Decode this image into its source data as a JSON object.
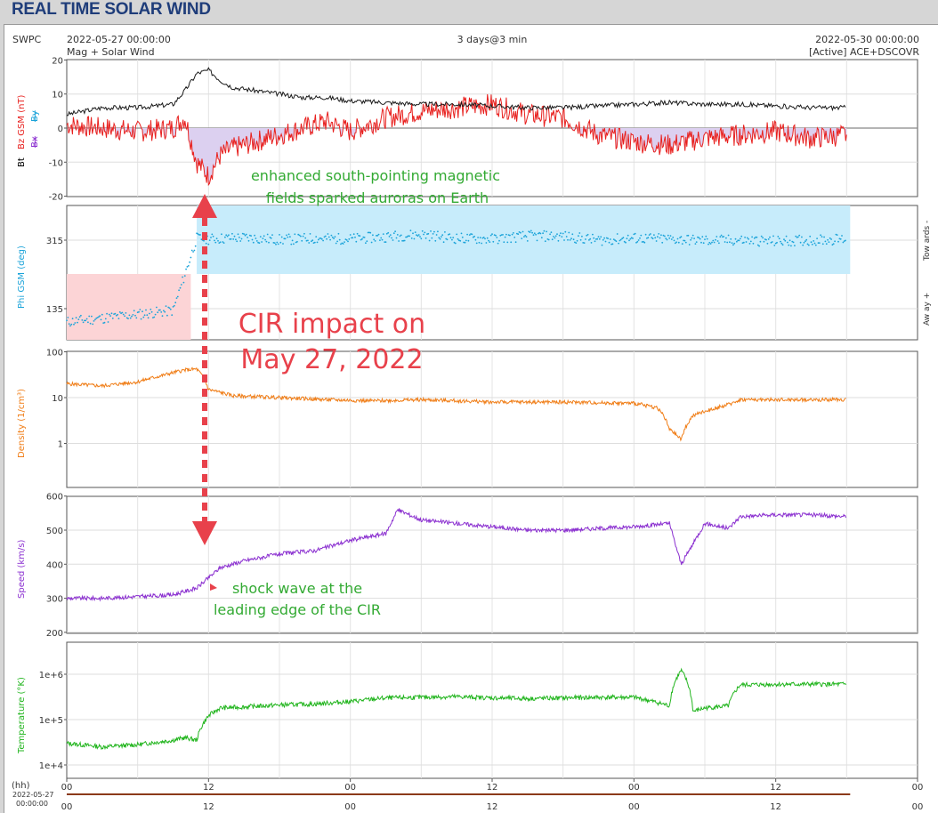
{
  "header": {
    "title": "REAL TIME SOLAR WIND",
    "org": "SWPC",
    "start_time": "2022-05-27 00:00:00",
    "subtitle": "Mag + Solar Wind",
    "span": "3 days@3 min",
    "end_time": "2022-05-30 00:00:00",
    "source": "[Active] ACE+DSCOVR"
  },
  "panels": {
    "mag": {
      "ylabel_bt": "Bt",
      "ylabel_bz": "Bz GSM (nT)",
      "ylabel_bx": "Bx",
      "ylabel_by": "By",
      "ticks": [
        "20",
        "10",
        "0",
        "-10",
        "-20"
      ]
    },
    "phi": {
      "ylabel": "Phi GSM (deg)",
      "ticks": [
        "315",
        "135"
      ],
      "right_top": "Tow ards -",
      "right_bottom": "Aw ay +"
    },
    "density": {
      "ylabel": "Density (1/cm³)",
      "ticks": [
        "100",
        "10",
        "1"
      ]
    },
    "speed": {
      "ylabel": "Speed (km/s)",
      "ticks": [
        "600",
        "500",
        "400",
        "300",
        "200"
      ]
    },
    "temp": {
      "ylabel": "Temperature (°K)",
      "ticks": [
        "1e+6",
        "1e+5",
        "1e+4"
      ]
    }
  },
  "xaxis": {
    "unit": "(hh)",
    "date": "2022-05-27",
    "time": "00:00:00",
    "ticks": [
      "00",
      "12",
      "00",
      "12",
      "00",
      "12",
      "00"
    ]
  },
  "annotations": {
    "bz_note": [
      "enhanced south-pointing magnetic",
      "fields sparked auroras on Earth"
    ],
    "cir_note": [
      "CIR impact on",
      "May 27, 2022"
    ],
    "shock_note": [
      "shock wave at the",
      "leading edge of the CIR"
    ]
  },
  "colors": {
    "bt": "#1a1a1a",
    "bz": "#e8201e",
    "phi": "#1aa3d9",
    "phi_towards": "#c7ecfb",
    "phi_away": "#fcd4d6",
    "density": "#f07d16",
    "speed": "#8b30d0",
    "temp": "#22b51e",
    "annot_green": "#33aa33",
    "annot_red": "#e8414b",
    "bz_fill": "#dcd0f0"
  },
  "chart_data": [
    {
      "type": "line",
      "title": "Mag",
      "ylabel": "Bt / Bz GSM (nT)",
      "ylim": [
        -20,
        20
      ],
      "x_unit": "hours since 2022-05-27 00:00",
      "series": [
        {
          "name": "Bt",
          "x": [
            0,
            3,
            6,
            9,
            10,
            11,
            12,
            13,
            14,
            16,
            18,
            20,
            22,
            24,
            27,
            30,
            33,
            36,
            39,
            42,
            45,
            48,
            51,
            54,
            57,
            60,
            63,
            66
          ],
          "values": [
            4,
            6,
            6,
            7,
            11,
            16,
            17,
            14,
            12,
            11,
            10,
            9,
            9,
            8,
            7.5,
            7,
            7,
            6.5,
            6,
            6,
            6.5,
            7,
            7.5,
            7,
            7,
            6.5,
            6,
            6
          ]
        },
        {
          "name": "Bz GSM",
          "x": [
            0,
            3,
            6,
            9,
            10,
            11,
            12,
            13,
            14,
            16,
            18,
            20,
            22,
            24,
            27,
            30,
            33,
            36,
            39,
            42,
            45,
            48,
            51,
            54,
            57,
            60,
            63,
            66
          ],
          "values": [
            1,
            0,
            -1,
            0,
            3,
            -10,
            -14,
            -8,
            -6,
            -4,
            -2,
            0,
            2,
            -1,
            3,
            5,
            6,
            7,
            4,
            3,
            -2,
            -4,
            -5,
            -3,
            -2,
            -1,
            -3,
            -2
          ]
        }
      ]
    },
    {
      "type": "scatter",
      "title": "Phi GSM",
      "ylabel": "Phi GSM (deg)",
      "ylim": [
        45,
        360
      ],
      "x_unit": "hours since 2022-05-27 00:00",
      "series": [
        {
          "name": "Phi",
          "x": [
            0,
            3,
            6,
            9,
            11,
            12,
            15,
            18,
            21,
            24,
            27,
            30,
            33,
            36,
            39,
            42,
            45,
            48,
            51,
            54,
            57,
            60,
            63,
            66
          ],
          "values": [
            100,
            110,
            120,
            130,
            320,
            318,
            322,
            316,
            320,
            318,
            324,
            330,
            320,
            318,
            326,
            325,
            315,
            320,
            318,
            314,
            315,
            312,
            315,
            318
          ]
        }
      ]
    },
    {
      "type": "line",
      "title": "Density",
      "ylabel": "Density (1/cm³)",
      "yscale": "log",
      "ylim": [
        0.1,
        100
      ],
      "x_unit": "hours since 2022-05-27 00:00",
      "series": [
        {
          "name": "Density",
          "x": [
            0,
            3,
            6,
            8,
            9,
            10,
            11,
            12,
            14,
            18,
            22,
            26,
            30,
            36,
            42,
            48,
            50,
            51,
            52,
            53,
            54,
            56,
            57,
            60,
            63,
            66
          ],
          "values": [
            20,
            18,
            22,
            30,
            35,
            40,
            42,
            15,
            11,
            10,
            9,
            8.5,
            9,
            8,
            8,
            7.5,
            6,
            2,
            1.2,
            4,
            5,
            7,
            9,
            9,
            9,
            9
          ]
        }
      ]
    },
    {
      "type": "line",
      "title": "Speed",
      "ylabel": "Speed (km/s)",
      "ylim": [
        200,
        600
      ],
      "x_unit": "hours since 2022-05-27 00:00",
      "series": [
        {
          "name": "Speed",
          "x": [
            0,
            3,
            6,
            9,
            11,
            12,
            13,
            15,
            18,
            21,
            24,
            27,
            28,
            30,
            33,
            36,
            39,
            42,
            45,
            48,
            51,
            52,
            54,
            56,
            57,
            60,
            63,
            66
          ],
          "values": [
            300,
            300,
            305,
            310,
            330,
            360,
            390,
            410,
            430,
            440,
            470,
            490,
            560,
            530,
            520,
            510,
            500,
            500,
            505,
            510,
            520,
            400,
            520,
            505,
            540,
            545,
            545,
            540
          ]
        }
      ]
    },
    {
      "type": "line",
      "title": "Temperature",
      "ylabel": "Temperature (°K)",
      "yscale": "log",
      "ylim": [
        10000,
        2000000
      ],
      "x_unit": "hours since 2022-05-27 00:00",
      "series": [
        {
          "name": "Temperature",
          "x": [
            0,
            3,
            6,
            9,
            10,
            11,
            12,
            13,
            15,
            18,
            21,
            24,
            27,
            30,
            33,
            36,
            39,
            42,
            45,
            48,
            51,
            52,
            53,
            54,
            56,
            57,
            60,
            63,
            66
          ],
          "values": [
            30000,
            25000,
            28000,
            35000,
            40000,
            35000,
            120000,
            180000,
            190000,
            210000,
            220000,
            250000,
            300000,
            310000,
            320000,
            300000,
            290000,
            300000,
            310000,
            310000,
            200000,
            1200000,
            150000,
            180000,
            200000,
            580000,
            600000,
            600000,
            600000
          ]
        }
      ]
    }
  ]
}
